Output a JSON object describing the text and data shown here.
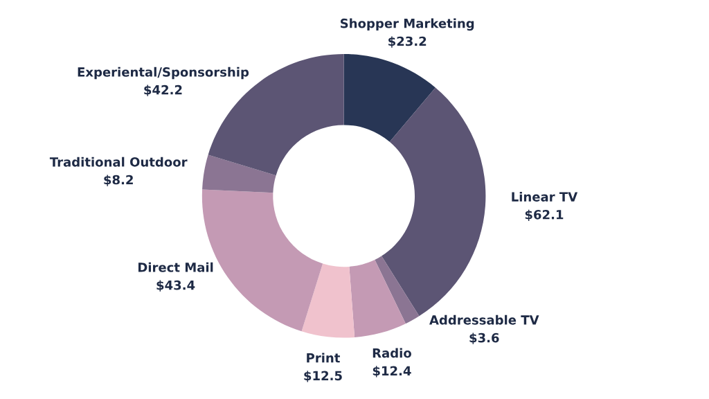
{
  "chart_data": {
    "type": "donut",
    "categories": [
      "Shopper Marketing",
      "Linear TV",
      "Addressable TV",
      "Radio",
      "Print",
      "Direct Mail",
      "Traditional Outdoor",
      "Experiental/Sponsorship"
    ],
    "values": [
      23.2,
      62.1,
      3.6,
      12.4,
      12.5,
      43.4,
      8.2,
      42.2
    ],
    "value_labels": [
      "$23.2",
      "$62.1",
      "$3.6",
      "$12.4",
      "$12.5",
      "$43.4",
      "$8.2",
      "$42.2"
    ],
    "colors": [
      "#283655",
      "#5c5574",
      "#8b7593",
      "#c49ab4",
      "#f0c2cd",
      "#c49ab4",
      "#8b7593",
      "#5c5574"
    ]
  }
}
